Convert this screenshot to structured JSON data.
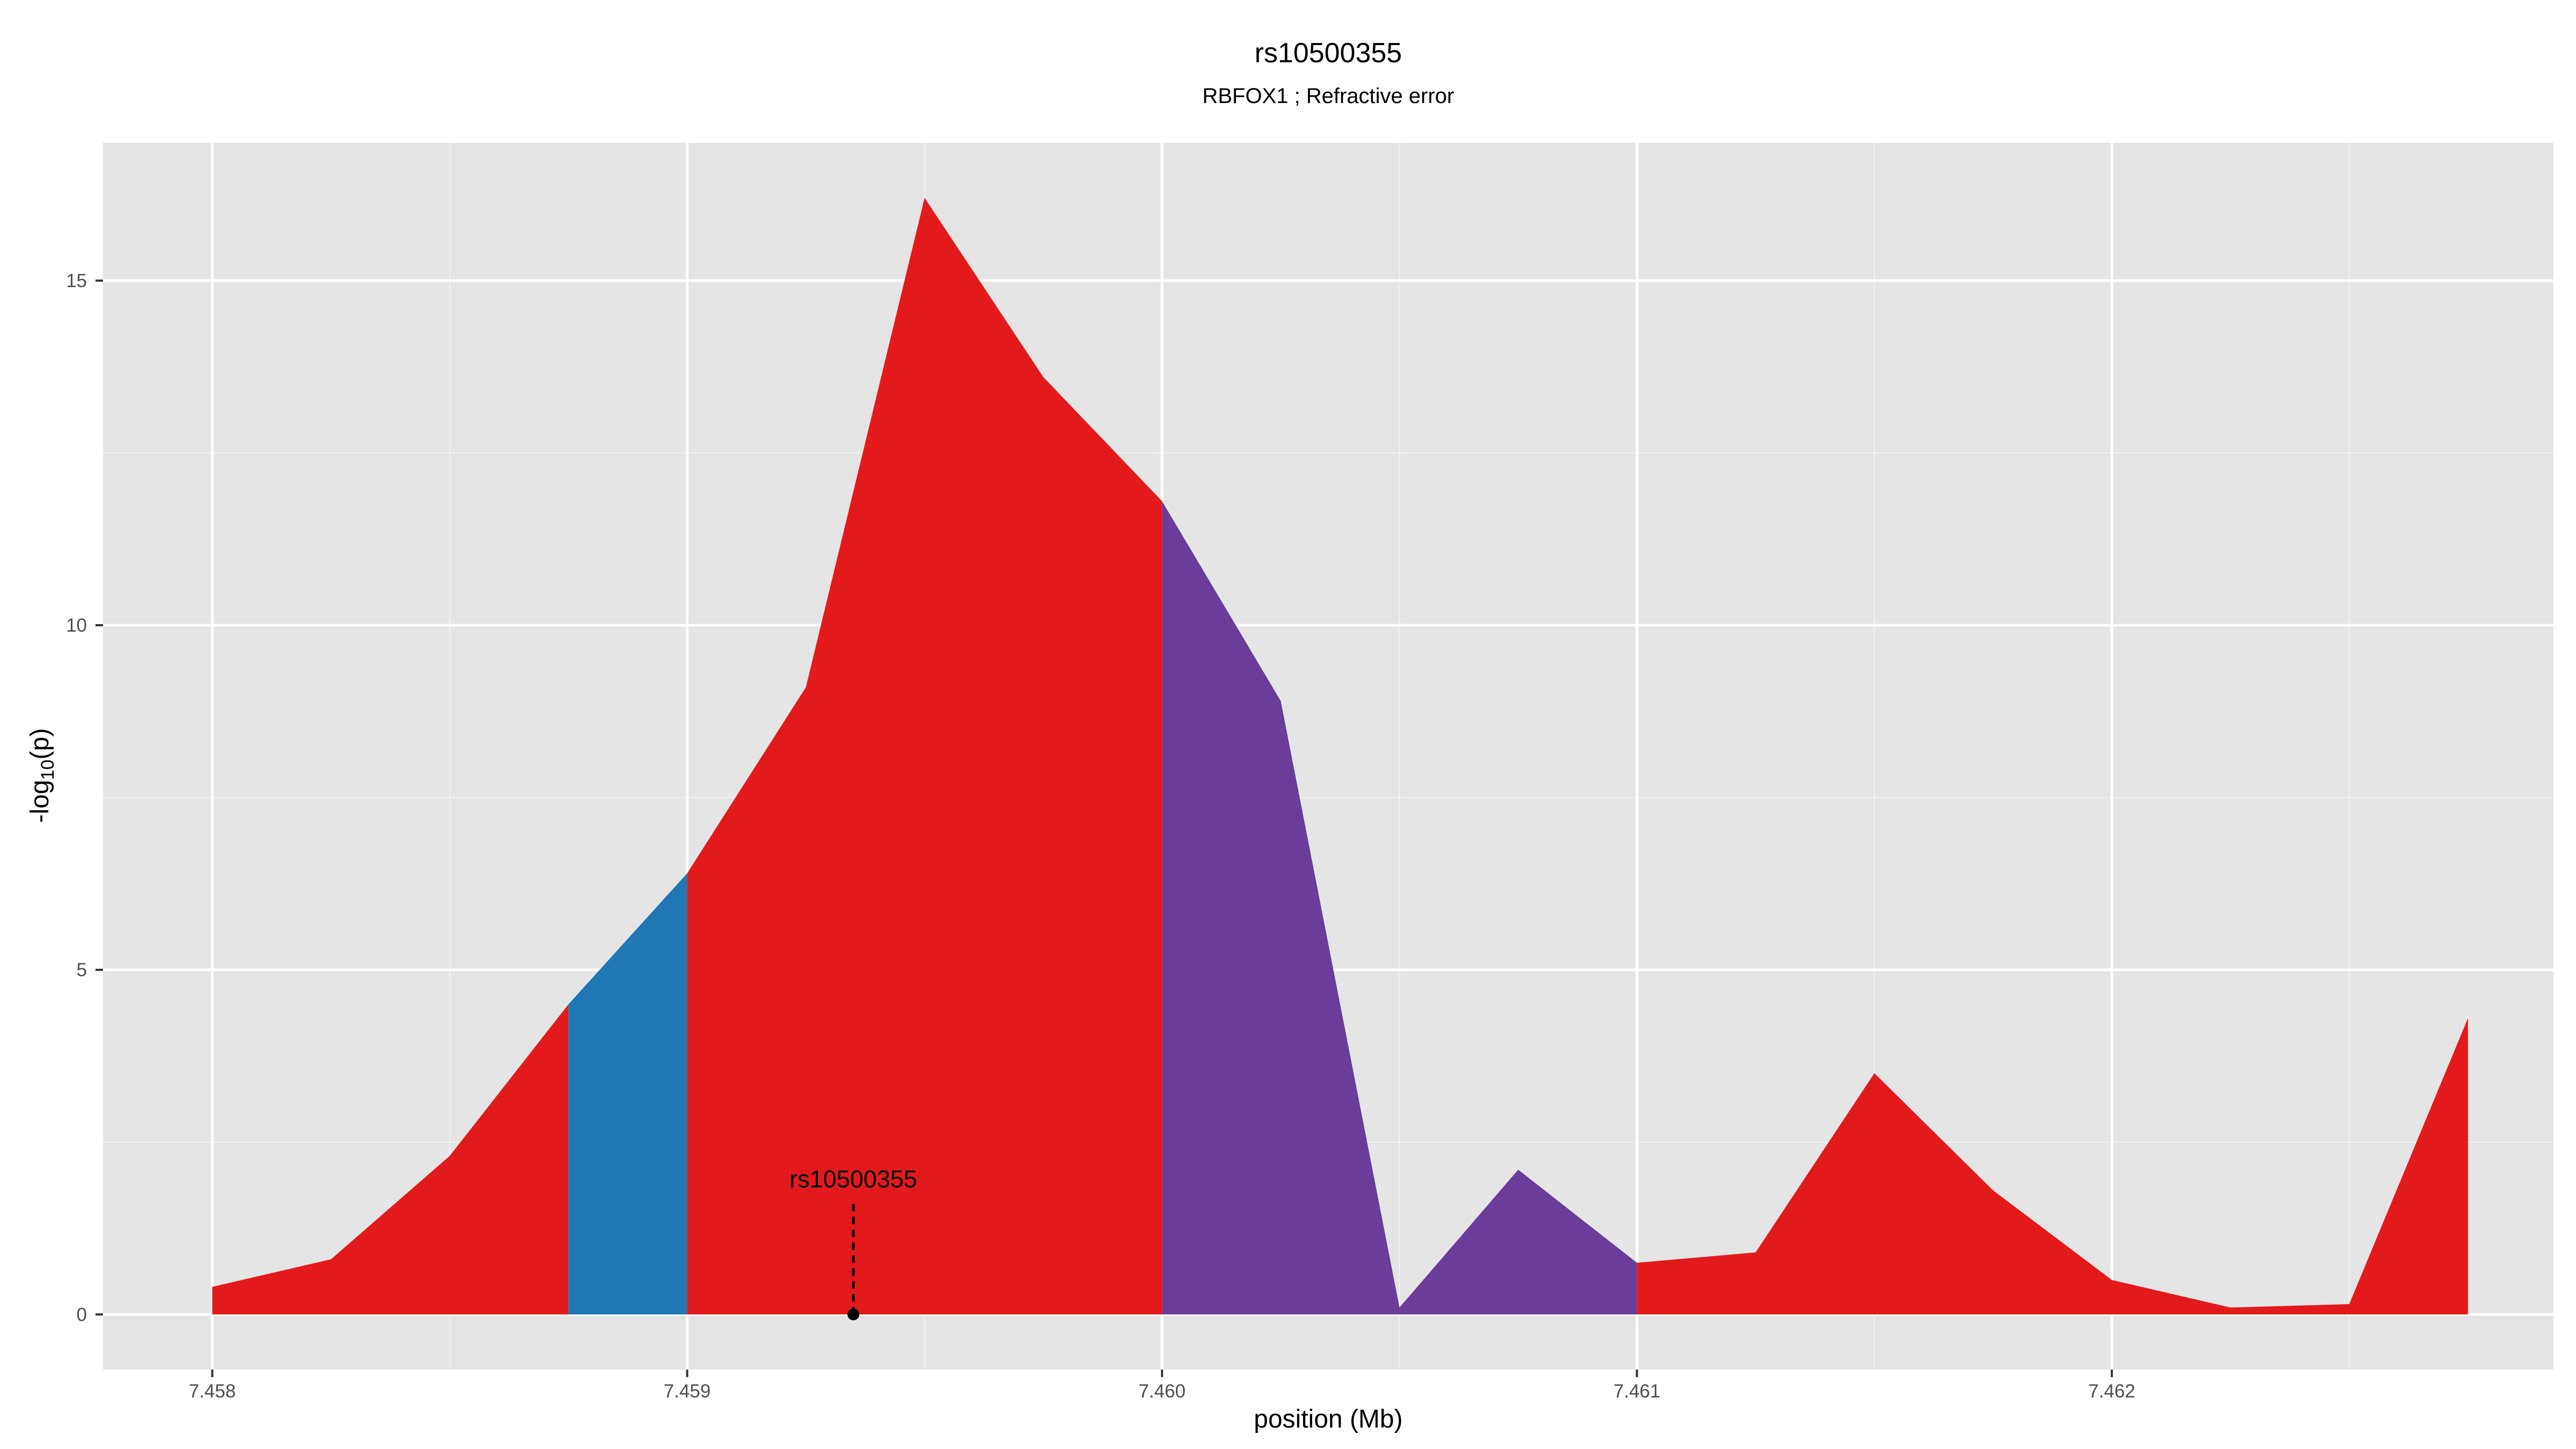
{
  "chart_data": {
    "type": "area",
    "title": "rs10500355",
    "subtitle": "RBFOX1 ; Refractive error",
    "xlabel": "position (Mb)",
    "ylabel": "-log10(p)",
    "xlim": [
      7.45777,
      7.46293
    ],
    "ylim": [
      -0.8,
      17.0
    ],
    "x_ticks": [
      {
        "value": 7.458,
        "label": "7.458"
      },
      {
        "value": 7.459,
        "label": "7.459"
      },
      {
        "value": 7.46,
        "label": "7.460"
      },
      {
        "value": 7.461,
        "label": "7.461"
      },
      {
        "value": 7.462,
        "label": "7.462"
      }
    ],
    "y_ticks": [
      {
        "value": 0,
        "label": "0"
      },
      {
        "value": 5,
        "label": "5"
      },
      {
        "value": 10,
        "label": "10"
      },
      {
        "value": 15,
        "label": "15"
      }
    ],
    "grid": true,
    "legend": "none",
    "colors": {
      "panel_bg": "#e5e5e5",
      "grid": "#ffffff",
      "red": "#e31a1c",
      "blue": "#1f78b4",
      "purple": "#6a3d9a"
    },
    "series": [
      {
        "color": "red",
        "x": [
          7.458,
          7.45825,
          7.4585,
          7.45875
        ],
        "y": [
          0.4,
          0.8,
          2.3,
          4.5
        ]
      },
      {
        "color": "blue",
        "x": [
          7.45875,
          7.459
        ],
        "y": [
          4.5,
          6.4
        ]
      },
      {
        "color": "red",
        "x": [
          7.459,
          7.45925,
          7.4595,
          7.45975,
          7.46
        ],
        "y": [
          6.4,
          9.1,
          16.2,
          13.6,
          11.8
        ]
      },
      {
        "color": "purple",
        "x": [
          7.46,
          7.46025,
          7.4605,
          7.46075,
          7.461
        ],
        "y": [
          11.8,
          8.9,
          0.1,
          2.1,
          0.75
        ]
      },
      {
        "color": "red",
        "x": [
          7.461,
          7.46125,
          7.4615,
          7.46175,
          7.462,
          7.46225,
          7.4625,
          7.46275
        ],
        "y": [
          0.75,
          0.9,
          3.5,
          1.8,
          0.5,
          0.1,
          0.15,
          4.3
        ]
      }
    ],
    "annotations": [
      {
        "label": "rs10500355",
        "x": 7.45935,
        "y": 0
      }
    ]
  }
}
